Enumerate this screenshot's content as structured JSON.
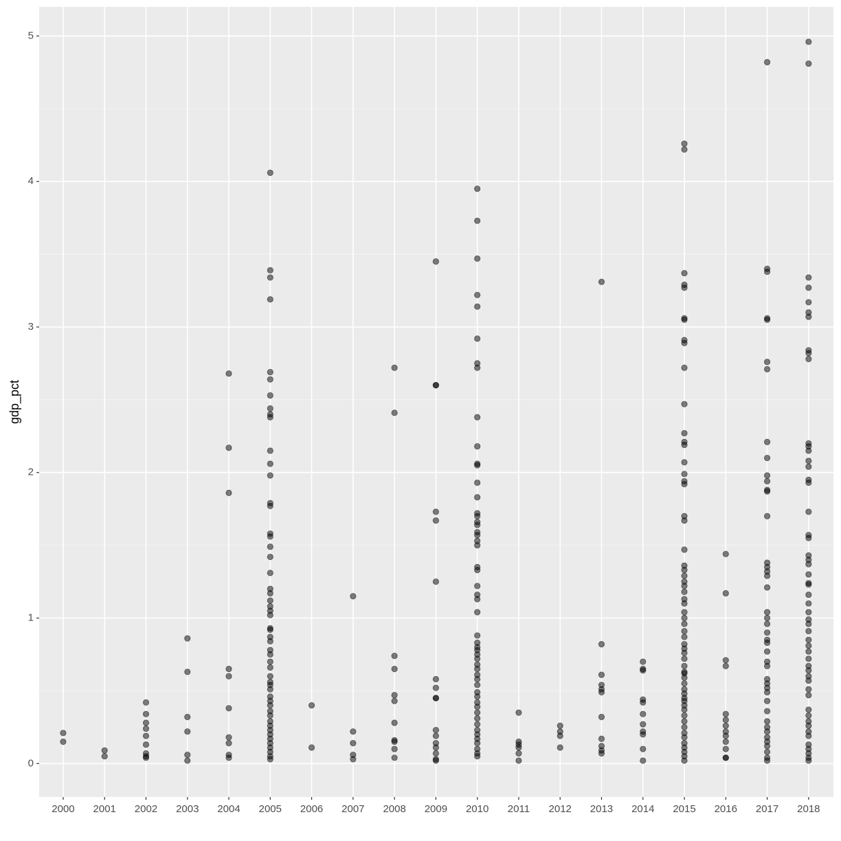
{
  "chart_data": {
    "type": "scatter",
    "y_label": "gdp_pct",
    "color": "#000000",
    "alpha": 0.5,
    "grid": true,
    "xlim": [
      1999.42,
      2018.6
    ],
    "ylim": [
      -0.23,
      5.2
    ],
    "xticks": [
      2000,
      2001,
      2002,
      2003,
      2004,
      2005,
      2006,
      2007,
      2008,
      2009,
      2010,
      2011,
      2012,
      2013,
      2014,
      2015,
      2016,
      2017,
      2018
    ],
    "yticks": [
      0,
      1,
      2,
      3,
      4,
      5
    ],
    "y_minor_ticks": [
      0.5,
      1.5,
      2.5,
      3.5,
      4.5
    ],
    "series": [
      {
        "x": 2000,
        "values": [
          0.21,
          0.15
        ]
      },
      {
        "x": 2001,
        "values": [
          0.09,
          0.05
        ]
      },
      {
        "x": 2002,
        "values": [
          0.42,
          0.34,
          0.28,
          0.24,
          0.19,
          0.13,
          0.07,
          0.05,
          0.04
        ]
      },
      {
        "x": 2003,
        "values": [
          0.86,
          0.63,
          0.32,
          0.22,
          0.06,
          0.02
        ]
      },
      {
        "x": 2004,
        "values": [
          2.68,
          2.17,
          1.86,
          0.65,
          0.6,
          0.38,
          0.18,
          0.14,
          0.06,
          0.04
        ]
      },
      {
        "x": 2005,
        "values": [
          4.06,
          3.39,
          3.34,
          3.19,
          2.69,
          2.64,
          2.53,
          2.44,
          2.4,
          2.38,
          2.15,
          2.06,
          1.98,
          1.79,
          1.77,
          1.58,
          1.56,
          1.49,
          1.42,
          1.31,
          1.2,
          1.17,
          1.12,
          1.08,
          1.05,
          1.02,
          0.93,
          0.92,
          0.87,
          0.84,
          0.78,
          0.75,
          0.7,
          0.66,
          0.6,
          0.56,
          0.54,
          0.51,
          0.46,
          0.43,
          0.4,
          0.36,
          0.33,
          0.29,
          0.26,
          0.23,
          0.2,
          0.17,
          0.14,
          0.11,
          0.08,
          0.05,
          0.03
        ]
      },
      {
        "x": 2006,
        "values": [
          0.4,
          0.11
        ]
      },
      {
        "x": 2007,
        "values": [
          1.15,
          0.22,
          0.14,
          0.06,
          0.03
        ]
      },
      {
        "x": 2008,
        "values": [
          2.72,
          2.41,
          0.74,
          0.65,
          0.47,
          0.43,
          0.28,
          0.16,
          0.15,
          0.1,
          0.04
        ]
      },
      {
        "x": 2009,
        "values": [
          3.45,
          2.6,
          2.6,
          1.73,
          1.67,
          1.25,
          0.58,
          0.52,
          0.45,
          0.45,
          0.23,
          0.19,
          0.14,
          0.11,
          0.07,
          0.03,
          0.02
        ]
      },
      {
        "x": 2010,
        "values": [
          3.95,
          3.73,
          3.47,
          3.22,
          3.14,
          2.92,
          2.75,
          2.72,
          2.38,
          2.18,
          2.06,
          2.05,
          1.93,
          1.83,
          1.72,
          1.7,
          1.66,
          1.64,
          1.59,
          1.57,
          1.53,
          1.5,
          1.35,
          1.33,
          1.22,
          1.16,
          1.13,
          1.04,
          0.88,
          0.83,
          0.8,
          0.78,
          0.75,
          0.72,
          0.68,
          0.65,
          0.61,
          0.58,
          0.54,
          0.49,
          0.46,
          0.42,
          0.39,
          0.35,
          0.31,
          0.27,
          0.23,
          0.2,
          0.17,
          0.14,
          0.1,
          0.07,
          0.05
        ]
      },
      {
        "x": 2011,
        "values": [
          0.35,
          0.15,
          0.13,
          0.11,
          0.07,
          0.02
        ]
      },
      {
        "x": 2012,
        "values": [
          0.26,
          0.22,
          0.19,
          0.11
        ]
      },
      {
        "x": 2013,
        "values": [
          3.31,
          0.82,
          0.61,
          0.54,
          0.51,
          0.49,
          0.32,
          0.17,
          0.12,
          0.09,
          0.07
        ]
      },
      {
        "x": 2014,
        "values": [
          0.7,
          0.65,
          0.64,
          0.44,
          0.42,
          0.34,
          0.27,
          0.22,
          0.2,
          0.1,
          0.02
        ]
      },
      {
        "x": 2015,
        "values": [
          4.26,
          4.22,
          3.37,
          3.29,
          3.27,
          3.06,
          3.05,
          2.91,
          2.89,
          2.72,
          2.47,
          2.27,
          2.21,
          2.19,
          2.07,
          1.99,
          1.94,
          1.92,
          1.7,
          1.67,
          1.47,
          1.36,
          1.33,
          1.29,
          1.25,
          1.22,
          1.18,
          1.13,
          1.1,
          1.04,
          1.0,
          0.96,
          0.91,
          0.87,
          0.82,
          0.79,
          0.76,
          0.72,
          0.67,
          0.63,
          0.62,
          0.59,
          0.55,
          0.51,
          0.48,
          0.45,
          0.43,
          0.4,
          0.37,
          0.33,
          0.29,
          0.25,
          0.21,
          0.18,
          0.14,
          0.11,
          0.08,
          0.05,
          0.02
        ]
      },
      {
        "x": 2016,
        "values": [
          1.44,
          1.17,
          0.71,
          0.67,
          0.34,
          0.3,
          0.26,
          0.22,
          0.19,
          0.15,
          0.1,
          0.04,
          0.04
        ]
      },
      {
        "x": 2017,
        "values": [
          4.82,
          3.4,
          3.38,
          3.06,
          3.05,
          2.76,
          2.71,
          2.21,
          2.1,
          1.98,
          1.94,
          1.88,
          1.87,
          1.7,
          1.38,
          1.35,
          1.32,
          1.29,
          1.21,
          1.04,
          1.0,
          0.96,
          0.9,
          0.85,
          0.83,
          0.77,
          0.7,
          0.67,
          0.58,
          0.55,
          0.52,
          0.49,
          0.43,
          0.36,
          0.29,
          0.25,
          0.22,
          0.18,
          0.15,
          0.12,
          0.08,
          0.04,
          0.02
        ]
      },
      {
        "x": 2018,
        "values": [
          4.96,
          4.81,
          3.34,
          3.27,
          3.17,
          3.1,
          3.07,
          2.84,
          2.82,
          2.78,
          2.2,
          2.18,
          2.15,
          2.08,
          2.04,
          1.95,
          1.93,
          1.73,
          1.57,
          1.55,
          1.43,
          1.4,
          1.37,
          1.3,
          1.24,
          1.23,
          1.16,
          1.1,
          1.04,
          0.99,
          0.96,
          0.91,
          0.85,
          0.81,
          0.77,
          0.72,
          0.67,
          0.64,
          0.6,
          0.57,
          0.51,
          0.47,
          0.37,
          0.33,
          0.29,
          0.26,
          0.22,
          0.19,
          0.13,
          0.1,
          0.07,
          0.04,
          0.02
        ]
      }
    ]
  }
}
